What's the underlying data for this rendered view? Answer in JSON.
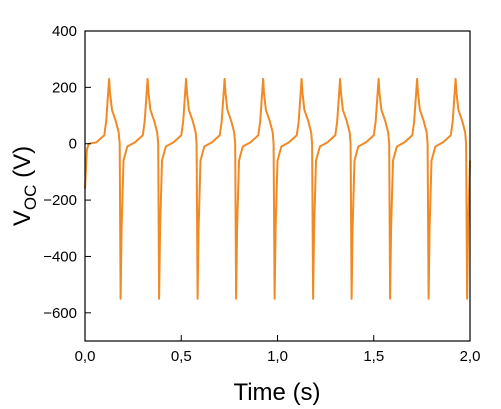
{
  "chart_data": {
    "type": "line",
    "xlabel": "Time (s)",
    "ylabel_main": "V",
    "ylabel_sub": "OC",
    "ylabel_unit": " (V)",
    "xlim": [
      0.0,
      2.0
    ],
    "ylim": [
      -700,
      400
    ],
    "x_ticks": [
      0.0,
      0.5,
      1.0,
      1.5,
      2.0
    ],
    "x_tick_labels": [
      "0,0",
      "0,5",
      "1,0",
      "1,5",
      "2,0"
    ],
    "y_ticks": [
      -600,
      -400,
      -200,
      0,
      200,
      400
    ],
    "y_tick_labels": [
      "−600",
      "−400",
      "−200",
      "0",
      "200",
      "400"
    ],
    "grid": false,
    "series_color": "#f08a24",
    "series": [
      {
        "x": [
          0.0,
          0.01,
          0.02,
          0.06,
          0.1,
          0.11,
          0.125,
          0.13,
          0.14,
          0.16,
          0.175,
          0.18,
          0.185,
          0.19,
          0.2,
          0.22,
          0.26,
          0.3,
          0.31,
          0.325,
          0.33,
          0.34,
          0.36,
          0.375,
          0.38,
          0.385,
          0.39,
          0.4,
          0.42,
          0.46,
          0.5,
          0.51,
          0.525,
          0.53,
          0.54,
          0.56,
          0.575,
          0.58,
          0.585,
          0.59,
          0.6,
          0.62,
          0.66,
          0.7,
          0.71,
          0.725,
          0.73,
          0.74,
          0.76,
          0.775,
          0.78,
          0.785,
          0.79,
          0.8,
          0.82,
          0.86,
          0.9,
          0.91,
          0.925,
          0.93,
          0.94,
          0.96,
          0.975,
          0.98,
          0.985,
          0.99,
          1.0,
          1.02,
          1.06,
          1.1,
          1.11,
          1.125,
          1.13,
          1.14,
          1.16,
          1.175,
          1.18,
          1.185,
          1.19,
          1.2,
          1.22,
          1.26,
          1.3,
          1.31,
          1.325,
          1.33,
          1.34,
          1.36,
          1.375,
          1.38,
          1.385,
          1.39,
          1.4,
          1.42,
          1.46,
          1.5,
          1.51,
          1.525,
          1.53,
          1.54,
          1.56,
          1.575,
          1.58,
          1.585,
          1.59,
          1.6,
          1.62,
          1.66,
          1.7,
          1.71,
          1.725,
          1.73,
          1.74,
          1.76,
          1.775,
          1.78,
          1.785,
          1.79,
          1.8,
          1.82,
          1.86,
          1.9,
          1.91,
          1.925,
          1.93,
          1.94,
          1.96,
          1.975,
          1.98,
          1.985,
          1.99,
          2.0
        ],
        "y": [
          -160,
          -20,
          0,
          5,
          30,
          80,
          230,
          180,
          120,
          80,
          40,
          0,
          -550,
          -300,
          -60,
          -10,
          5,
          30,
          80,
          230,
          180,
          120,
          80,
          40,
          0,
          -550,
          -300,
          -60,
          -10,
          5,
          30,
          80,
          230,
          180,
          120,
          80,
          40,
          0,
          -550,
          -300,
          -60,
          -10,
          5,
          30,
          80,
          230,
          180,
          120,
          80,
          40,
          0,
          -550,
          -300,
          -60,
          -10,
          5,
          30,
          80,
          230,
          180,
          120,
          80,
          40,
          0,
          -550,
          -300,
          -60,
          -10,
          5,
          30,
          80,
          230,
          180,
          120,
          80,
          40,
          0,
          -550,
          -300,
          -60,
          -10,
          5,
          30,
          80,
          230,
          180,
          120,
          80,
          40,
          0,
          -550,
          -300,
          -60,
          -10,
          5,
          30,
          80,
          230,
          180,
          120,
          80,
          40,
          0,
          -550,
          -300,
          -60,
          -10,
          5,
          30,
          80,
          230,
          180,
          120,
          80,
          40,
          0,
          -550,
          -300,
          -60,
          -10,
          5,
          30,
          80,
          230,
          180,
          120,
          80,
          40,
          0,
          -550,
          -300,
          -60
        ]
      }
    ]
  }
}
